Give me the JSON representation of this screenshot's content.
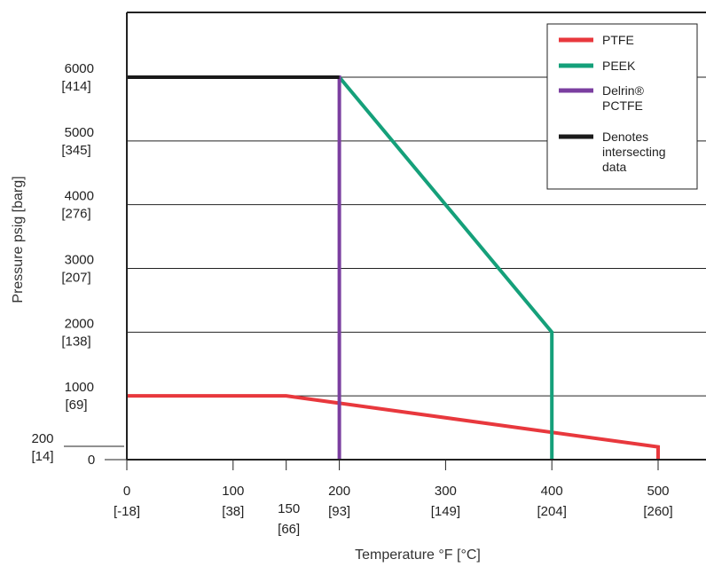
{
  "chart_data": {
    "type": "line",
    "xlabel": "Temperature °F [°C]",
    "ylabel": "Pressure psig [barg]",
    "xlim": [
      0,
      540
    ],
    "ylim": [
      0,
      7000
    ],
    "grid": "horizontal",
    "legend_position": "top-right",
    "x_ticks": [
      {
        "value": 0,
        "f": "0",
        "c": "[-18]"
      },
      {
        "value": 100,
        "f": "100",
        "c": "[38]"
      },
      {
        "value": 150,
        "f": "150",
        "c": "[66]"
      },
      {
        "value": 200,
        "f": "200",
        "c": "[93]"
      },
      {
        "value": 300,
        "f": "300",
        "c": "[149]"
      },
      {
        "value": 400,
        "f": "400",
        "c": "[204]"
      },
      {
        "value": 500,
        "f": "500",
        "c": "[260]"
      }
    ],
    "y_ticks": [
      {
        "value": 0,
        "psi": "0",
        "bar": ""
      },
      {
        "value": 200,
        "psi": "200",
        "bar": "[14]"
      },
      {
        "value": 1000,
        "psi": "1000",
        "bar": "[69]"
      },
      {
        "value": 2000,
        "psi": "2000",
        "bar": "[138]"
      },
      {
        "value": 3000,
        "psi": "3000",
        "bar": "[207]"
      },
      {
        "value": 4000,
        "psi": "4000",
        "bar": "[276]"
      },
      {
        "value": 5000,
        "psi": "5000",
        "bar": "[345]"
      },
      {
        "value": 6000,
        "psi": "6000",
        "bar": "[414]"
      }
    ],
    "series": [
      {
        "name": "PTFE",
        "color": "#e8383d",
        "points": [
          [
            0,
            1000
          ],
          [
            150,
            1000
          ],
          [
            500,
            200
          ],
          [
            500,
            0
          ]
        ]
      },
      {
        "name": "PEEK",
        "color": "#15a07a",
        "points": [
          [
            0,
            6000
          ],
          [
            200,
            6000
          ],
          [
            400,
            2000
          ],
          [
            400,
            0
          ]
        ]
      },
      {
        "name": "Delrin® PCTFE",
        "color": "#7b3fa0",
        "points": [
          [
            0,
            6000
          ],
          [
            200,
            6000
          ],
          [
            200,
            0
          ]
        ]
      },
      {
        "name": "Denotes intersecting data",
        "color": "#1a1a1a",
        "points": [
          [
            0,
            6000
          ],
          [
            200,
            6000
          ]
        ]
      }
    ],
    "legend": [
      {
        "color": "#e8383d",
        "lines": [
          "PTFE"
        ]
      },
      {
        "color": "#15a07a",
        "lines": [
          "PEEK"
        ]
      },
      {
        "color": "#7b3fa0",
        "lines": [
          "Delrin®",
          "PCTFE"
        ]
      },
      {
        "color": "#1a1a1a",
        "lines": [
          "Denotes",
          "intersecting",
          "data"
        ]
      }
    ]
  }
}
